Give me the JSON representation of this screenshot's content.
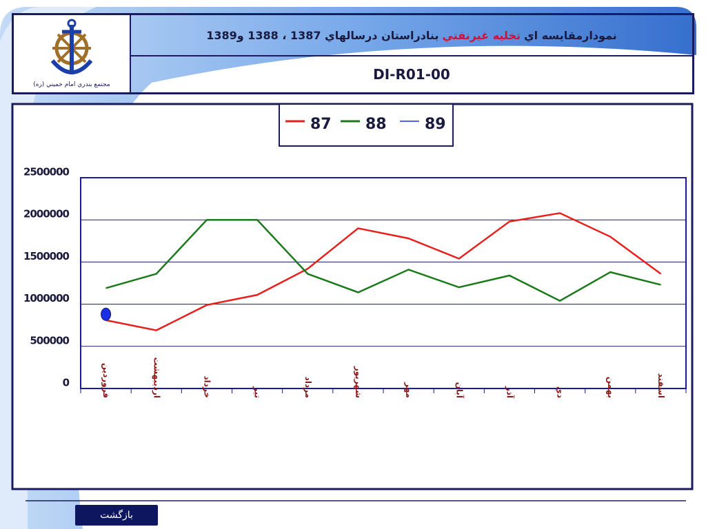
{
  "header": {
    "title_parts": [
      "نمودارمقايسه اي",
      "تخليه غيرنفتي",
      "بنادراستان درسالهاي 1387 ، 1388 و1389"
    ],
    "code": "DI-R01-00",
    "logo_caption": "مجتمع بندري امام خميني (ره)"
  },
  "chart_data": {
    "type": "line",
    "categories": [
      "فروردين",
      "ارديبهشت",
      "خرداد",
      "تير",
      "مرداد",
      "شهريور",
      "مهر",
      "آبان",
      "آذر",
      "دي",
      "بهمن",
      "اسفند"
    ],
    "series": [
      {
        "name": "87",
        "color": "#e8201c",
        "values": [
          810000,
          690000,
          990000,
          1110000,
          1420000,
          1900000,
          1780000,
          1540000,
          1980000,
          2080000,
          1800000,
          1360000
        ]
      },
      {
        "name": "88",
        "color": "#1a7a1a",
        "values": [
          1190000,
          1360000,
          2000000,
          2000000,
          1360000,
          1140000,
          1410000,
          1200000,
          1340000,
          1040000,
          1380000,
          1230000
        ]
      },
      {
        "name": "89",
        "color": "#1a2ee8",
        "values": [
          880000,
          null,
          null,
          null,
          null,
          null,
          null,
          null,
          null,
          null,
          null,
          null
        ]
      }
    ],
    "ylim": [
      0,
      2500000
    ],
    "yticks": [
      0,
      500000,
      1000000,
      1500000,
      2000000,
      2500000
    ],
    "grid": true,
    "legend": "top"
  },
  "footer": {
    "button": "بازگشت"
  }
}
